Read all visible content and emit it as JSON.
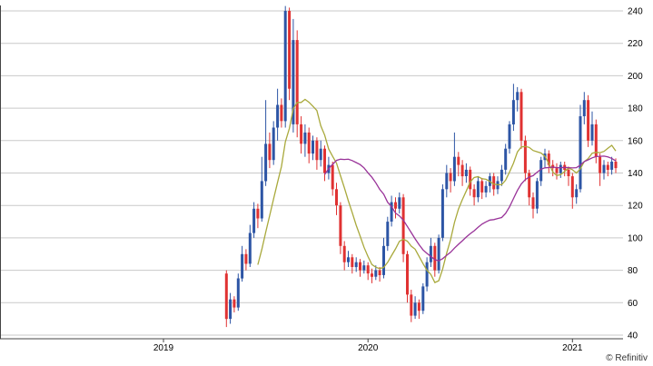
{
  "chart_data": {
    "type": "candlestick",
    "title": "",
    "copyright": "© Refinitiv",
    "y_axis": {
      "min": 40,
      "max": 240,
      "step": 20,
      "tick_labels": [
        "240",
        "220",
        "200",
        "180",
        "160",
        "140",
        "120",
        "100",
        "80",
        "60",
        "40"
      ],
      "position": "right"
    },
    "x_axis": {
      "year_labels": [
        "2019",
        "2020",
        "2021"
      ]
    },
    "grid": "horizontal-only",
    "start_week_index": 16,
    "colors": {
      "up": "#2d55a5",
      "down": "#e03232",
      "grid": "#c9c9c9",
      "axis": "#444444",
      "short_ma": "#a9a93c",
      "long_ma": "#993399",
      "text": "#000000",
      "background": "#ffffff"
    },
    "overlays": [
      {
        "name": "short-moving-average",
        "window": 9,
        "color_key": "short_ma"
      },
      {
        "name": "long-moving-average",
        "window": 26,
        "color_key": "long_ma"
      }
    ],
    "candles_format": [
      "open",
      "high",
      "low",
      "close"
    ],
    "candles": [
      [
        78,
        80,
        45,
        50
      ],
      [
        50,
        66,
        47,
        62
      ],
      [
        62,
        64,
        54,
        57
      ],
      [
        57,
        78,
        55,
        75
      ],
      [
        75,
        95,
        73,
        90
      ],
      [
        90,
        93,
        80,
        84
      ],
      [
        84,
        108,
        82,
        103
      ],
      [
        103,
        122,
        100,
        118
      ],
      [
        118,
        121,
        106,
        112
      ],
      [
        112,
        150,
        110,
        135
      ],
      [
        135,
        185,
        132,
        158
      ],
      [
        158,
        165,
        143,
        148
      ],
      [
        148,
        172,
        145,
        168
      ],
      [
        168,
        192,
        160,
        182
      ],
      [
        182,
        186,
        168,
        172
      ],
      [
        172,
        243,
        168,
        240
      ],
      [
        240,
        242,
        185,
        192
      ],
      [
        170,
        235,
        165,
        222
      ],
      [
        222,
        228,
        162,
        170
      ],
      [
        170,
        175,
        152,
        158
      ],
      [
        158,
        170,
        150,
        165
      ],
      [
        165,
        168,
        146,
        152
      ],
      [
        152,
        163,
        148,
        160
      ],
      [
        160,
        162,
        142,
        148
      ],
      [
        148,
        160,
        144,
        155
      ],
      [
        155,
        157,
        135,
        140
      ],
      [
        140,
        150,
        136,
        145
      ],
      [
        145,
        147,
        126,
        130
      ],
      [
        130,
        134,
        114,
        120
      ],
      [
        120,
        122,
        90,
        95
      ],
      [
        95,
        98,
        80,
        85
      ],
      [
        85,
        92,
        82,
        88
      ],
      [
        88,
        90,
        78,
        82
      ],
      [
        82,
        88,
        79,
        85
      ],
      [
        85,
        87,
        76,
        80
      ],
      [
        80,
        86,
        78,
        83
      ],
      [
        83,
        85,
        74,
        78
      ],
      [
        78,
        81,
        72,
        76
      ],
      [
        76,
        83,
        74,
        80
      ],
      [
        80,
        82,
        73,
        77
      ],
      [
        77,
        100,
        75,
        95
      ],
      [
        95,
        113,
        92,
        110
      ],
      [
        110,
        126,
        107,
        122
      ],
      [
        122,
        125,
        112,
        118
      ],
      [
        118,
        128,
        115,
        125
      ],
      [
        125,
        127,
        85,
        90
      ],
      [
        90,
        92,
        60,
        65
      ],
      [
        65,
        68,
        48,
        52
      ],
      [
        52,
        64,
        50,
        60
      ],
      [
        60,
        62,
        50,
        55
      ],
      [
        55,
        72,
        53,
        70
      ],
      [
        70,
        88,
        67,
        85
      ],
      [
        85,
        100,
        82,
        95
      ],
      [
        95,
        97,
        76,
        80
      ],
      [
        80,
        102,
        78,
        100
      ],
      [
        100,
        133,
        98,
        130
      ],
      [
        130,
        145,
        125,
        140
      ],
      [
        140,
        143,
        128,
        135
      ],
      [
        135,
        165,
        132,
        150
      ],
      [
        150,
        153,
        138,
        145
      ],
      [
        145,
        148,
        132,
        138
      ],
      [
        138,
        146,
        134,
        142
      ],
      [
        142,
        144,
        126,
        130
      ],
      [
        130,
        133,
        120,
        125
      ],
      [
        125,
        138,
        122,
        135
      ],
      [
        135,
        137,
        124,
        128
      ],
      [
        128,
        135,
        125,
        132
      ],
      [
        132,
        140,
        128,
        138
      ],
      [
        138,
        140,
        126,
        130
      ],
      [
        130,
        138,
        127,
        135
      ],
      [
        135,
        145,
        132,
        142
      ],
      [
        142,
        158,
        139,
        155
      ],
      [
        155,
        172,
        152,
        170
      ],
      [
        170,
        195,
        166,
        185
      ],
      [
        185,
        193,
        178,
        190
      ],
      [
        190,
        192,
        155,
        160
      ],
      [
        160,
        163,
        135,
        140
      ],
      [
        140,
        142,
        120,
        125
      ],
      [
        125,
        128,
        112,
        118
      ],
      [
        118,
        137,
        115,
        135
      ],
      [
        135,
        150,
        132,
        148
      ],
      [
        148,
        155,
        143,
        152
      ],
      [
        152,
        154,
        140,
        145
      ],
      [
        145,
        148,
        138,
        143
      ],
      [
        143,
        146,
        136,
        140
      ],
      [
        140,
        147,
        137,
        145
      ],
      [
        145,
        147,
        138,
        142
      ],
      [
        142,
        144,
        132,
        138
      ],
      [
        138,
        140,
        118,
        125
      ],
      [
        125,
        133,
        121,
        130
      ],
      [
        130,
        182,
        128,
        175
      ],
      [
        175,
        190,
        170,
        185
      ],
      [
        185,
        188,
        156,
        160
      ],
      [
        160,
        178,
        157,
        170
      ],
      [
        170,
        173,
        146,
        150
      ],
      [
        150,
        152,
        132,
        140
      ],
      [
        140,
        148,
        136,
        145
      ],
      [
        145,
        147,
        138,
        142
      ],
      [
        142,
        150,
        139,
        147
      ],
      [
        147,
        149,
        140,
        143
      ]
    ]
  }
}
